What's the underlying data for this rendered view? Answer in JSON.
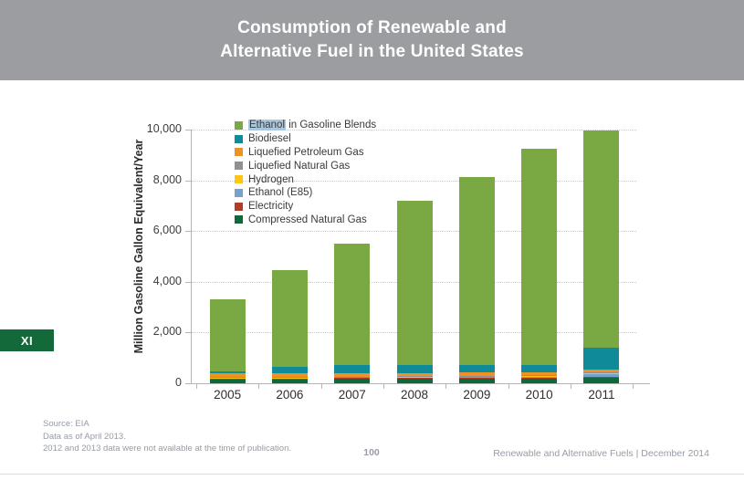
{
  "header": {
    "title_line1": "Consumption of Renewable and",
    "title_line2": "Alternative Fuel in the United States"
  },
  "side_tab": {
    "label": "XI"
  },
  "chart_data": {
    "type": "bar",
    "stacked": true,
    "title": "Consumption of Renewable and Alternative Fuel in the United States",
    "xlabel": "",
    "ylabel": "Million Gasoline Gallon Equivalent/Year",
    "categories": [
      "2005",
      "2006",
      "2007",
      "2008",
      "2009",
      "2010",
      "2011"
    ],
    "ylim": [
      0,
      10000
    ],
    "ytick_interval": 2000,
    "ytick_labels": [
      "0",
      "2,000",
      "4,000",
      "6,000",
      "8,000",
      "10,000"
    ],
    "grid": "horizontal dotted",
    "legend_position": "top-left inside plot",
    "stack_order": "bottom-to-top is reverse of series list (Compressed Natural Gas at bottom, Ethanol in Gasoline Blends on top)",
    "series": [
      {
        "name": "Ethanol in Gasoline Blends",
        "highlighted_word": "Ethanol",
        "color": "#7aa943",
        "values": [
          2825,
          3820,
          4785,
          6490,
          7405,
          8540,
          8565
        ]
      },
      {
        "name": "Biodiesel",
        "color": "#0e8a99",
        "values": [
          90,
          250,
          330,
          305,
          300,
          290,
          840
        ]
      },
      {
        "name": "Liquefied Petroleum Gas",
        "color": "#ee9226",
        "values": [
          150,
          130,
          125,
          120,
          125,
          120,
          115
        ]
      },
      {
        "name": "Liquefied Natural Gas",
        "color": "#8e9091",
        "values": [
          20,
          20,
          20,
          35,
          30,
          30,
          40
        ]
      },
      {
        "name": "Hydrogen",
        "color": "#fdc70e",
        "values": [
          5,
          5,
          5,
          5,
          5,
          5,
          5
        ]
      },
      {
        "name": "Ethanol (E85)",
        "color": "#74a2cb",
        "values": [
          25,
          30,
          35,
          40,
          45,
          50,
          140
        ]
      },
      {
        "name": "Electricity",
        "color": "#b23c26",
        "values": [
          15,
          15,
          15,
          15,
          20,
          15,
          15
        ]
      },
      {
        "name": "Compressed Natural Gas",
        "color": "#0d693a",
        "values": [
          170,
          180,
          185,
          190,
          200,
          210,
          230
        ]
      }
    ],
    "approx_totals": [
      3300,
      4450,
      5500,
      7200,
      8130,
      9260,
      9950
    ]
  },
  "footer": {
    "source": "Source: EIA",
    "data_as_of": "Data as of April 2013.",
    "note": "2012 and 2013 data were not available at the time of publication.",
    "page_number": "100",
    "doc_info": "Renewable and Alternative Fuels  |  December 2014"
  },
  "colors": {
    "header_bg": "#9b9da0",
    "header_text": "#ffffff",
    "side_tab_bg": "#14693b",
    "highlight_bg": "#a9c6de",
    "footer_text": "#969ba5",
    "axis_text": "#3d3d3d",
    "gridline": "#c8c8c8",
    "axis_line": "#b3b5b7"
  }
}
